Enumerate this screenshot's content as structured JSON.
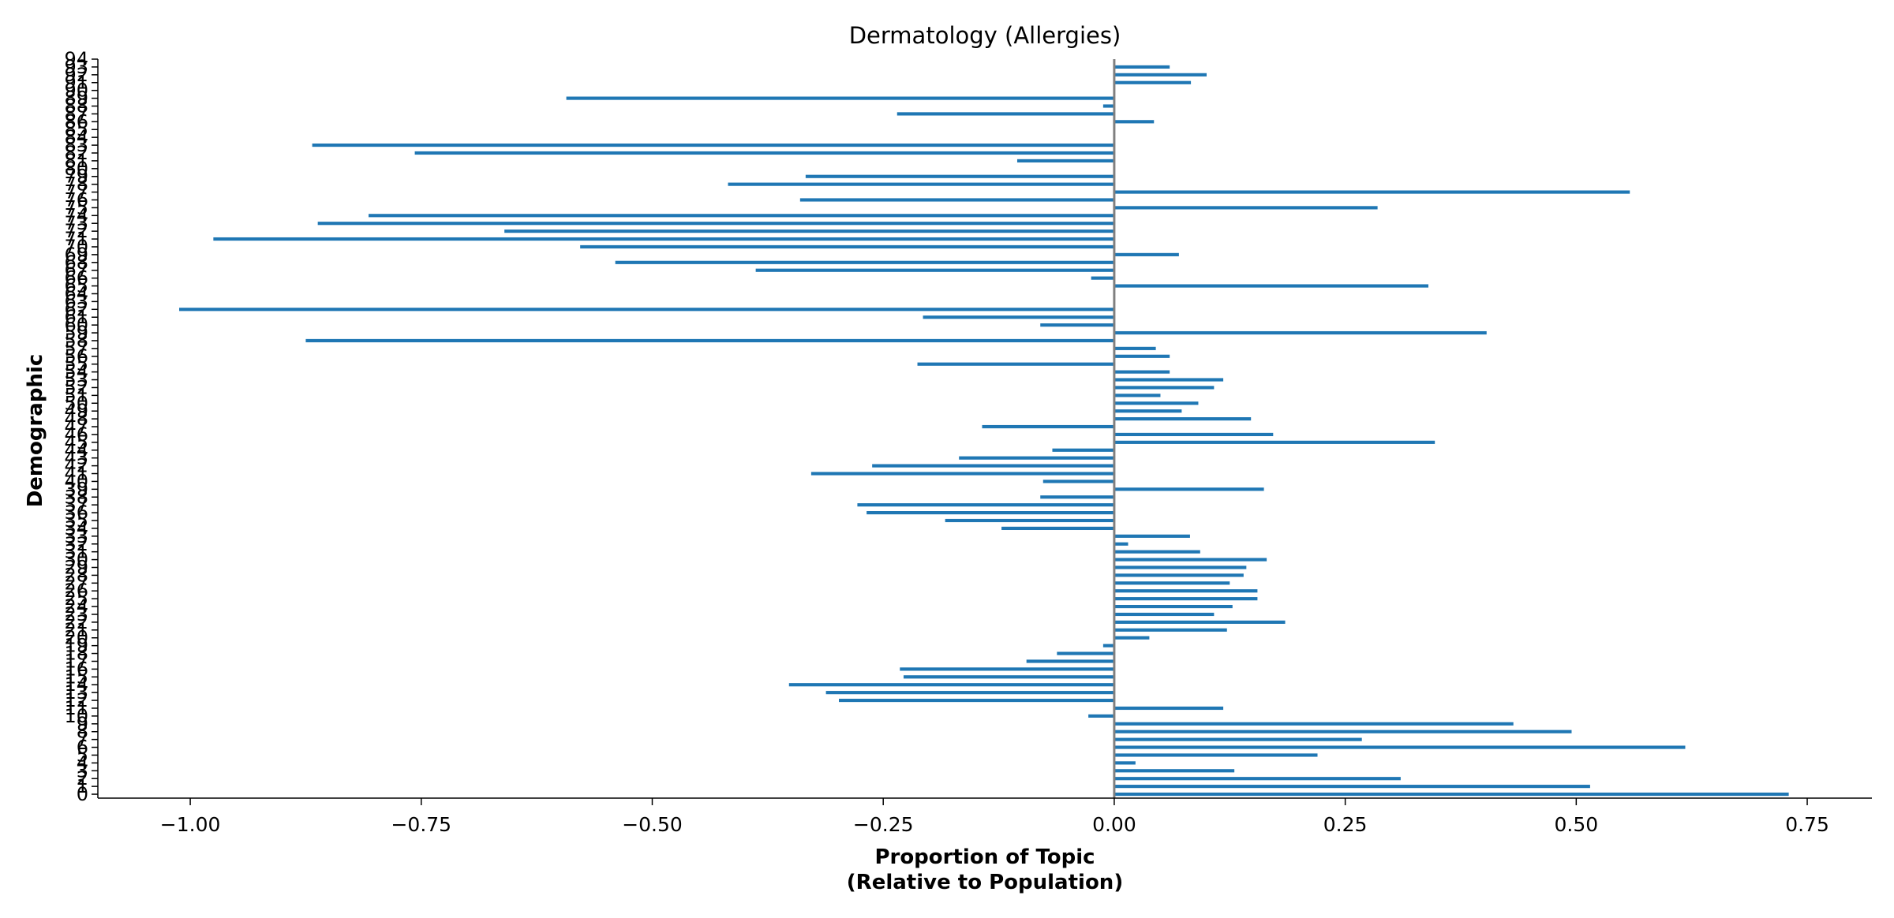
{
  "chart_data": {
    "type": "bar",
    "orientation": "horizontal",
    "title": "Dermatology (Allergies)",
    "xlabel_lines": [
      "Proportion of Topic",
      "(Relative to Population)"
    ],
    "ylabel": "Demographic",
    "xlim": [
      -1.1,
      0.82
    ],
    "ylim": [
      -0.5,
      94
    ],
    "xticks": [
      -1.0,
      -0.75,
      -0.5,
      -0.25,
      0.0,
      0.25,
      0.5,
      0.75
    ],
    "xtick_labels": [
      "−1.00",
      "−0.75",
      "−0.50",
      "−0.25",
      "0.00",
      "0.25",
      "0.50",
      "0.75"
    ],
    "categories": [
      "0",
      "1",
      "2",
      "3",
      "4",
      "5",
      "6",
      "7",
      "8",
      "9",
      "10",
      "11",
      "12",
      "13",
      "14",
      "15",
      "16",
      "17",
      "18",
      "19",
      "20",
      "21",
      "22",
      "23",
      "24",
      "25",
      "26",
      "27",
      "28",
      "29",
      "30",
      "31",
      "32",
      "33",
      "34",
      "35",
      "36",
      "37",
      "38",
      "39",
      "40",
      "41",
      "42",
      "43",
      "44",
      "45",
      "46",
      "47",
      "48",
      "49",
      "50",
      "51",
      "52",
      "53",
      "54",
      "55",
      "56",
      "57",
      "58",
      "59",
      "60",
      "61",
      "62",
      "63",
      "64",
      "65",
      "66",
      "67",
      "68",
      "69",
      "70",
      "71",
      "72",
      "73",
      "74",
      "75",
      "76",
      "77",
      "78",
      "79",
      "80",
      "81",
      "82",
      "83",
      "84",
      "85",
      "86",
      "87",
      "88",
      "89",
      "90",
      "91",
      "92",
      "93",
      "94"
    ],
    "values": [
      0.73,
      0.515,
      0.31,
      0.13,
      0.023,
      0.22,
      0.618,
      0.268,
      0.495,
      0.432,
      -0.028,
      0.118,
      -0.298,
      -0.312,
      -0.352,
      -0.228,
      -0.232,
      -0.095,
      -0.062,
      -0.012,
      0.038,
      0.122,
      0.185,
      0.108,
      0.128,
      0.155,
      0.155,
      0.125,
      0.14,
      0.143,
      0.165,
      0.093,
      0.015,
      0.082,
      -0.122,
      -0.183,
      -0.268,
      -0.278,
      -0.08,
      0.162,
      -0.077,
      -0.328,
      -0.262,
      -0.168,
      -0.067,
      0.347,
      0.172,
      -0.143,
      0.148,
      0.073,
      0.091,
      0.05,
      0.108,
      0.118,
      0.06,
      -0.213,
      0.06,
      0.045,
      -0.875,
      0.403,
      -0.08,
      -0.207,
      -1.012,
      0.0,
      0.0,
      0.34,
      -0.025,
      -0.388,
      -0.54,
      0.07,
      -0.578,
      -0.975,
      -0.66,
      -0.862,
      -0.807,
      0.285,
      -0.34,
      0.558,
      -0.418,
      -0.334,
      0.0,
      -0.105,
      -0.757,
      -0.868,
      0.0,
      0.0,
      0.043,
      -0.235,
      -0.012,
      -0.593,
      0.0,
      0.083,
      0.1,
      0.06,
      0.0
    ],
    "bar_color": "#1f77b4",
    "zero_line_color": "#808080",
    "grid": false,
    "legend": "none"
  }
}
